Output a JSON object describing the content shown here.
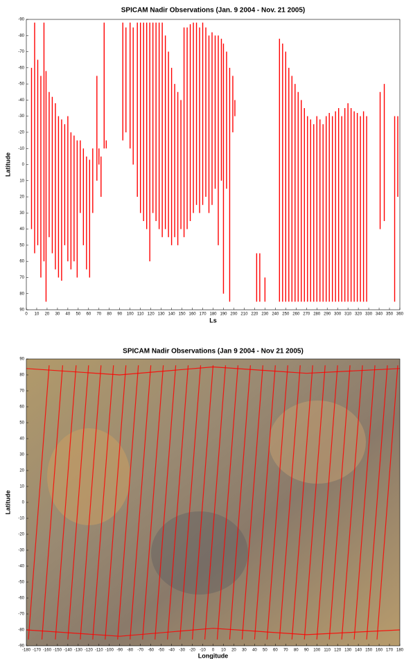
{
  "chart_data": [
    {
      "type": "range",
      "title": "SPICAM Nadir Observations (Jan. 9 2004 - Nov. 21 2005)",
      "xlabel": "Ls",
      "ylabel": "Latitude",
      "color": "#ff0000",
      "y_reversed": true,
      "xlim": [
        0,
        360
      ],
      "ylim": [
        -90,
        90
      ],
      "xticks": [
        0,
        10,
        20,
        30,
        40,
        50,
        60,
        70,
        80,
        90,
        100,
        110,
        120,
        130,
        140,
        150,
        160,
        170,
        180,
        190,
        200,
        210,
        220,
        230,
        240,
        250,
        260,
        270,
        280,
        290,
        300,
        310,
        320,
        330,
        340,
        350,
        360
      ],
      "yticks": [
        -90,
        -80,
        -70,
        -60,
        -50,
        -40,
        -30,
        -20,
        -10,
        0,
        10,
        20,
        30,
        40,
        50,
        60,
        70,
        80,
        90
      ],
      "x": [
        5,
        8,
        11,
        14,
        17,
        19,
        22,
        25,
        28,
        31,
        34,
        37,
        40,
        43,
        46,
        49,
        52,
        55,
        58,
        61,
        64,
        68,
        70,
        72,
        75,
        77,
        93,
        96,
        100,
        103,
        107,
        110,
        113,
        116,
        119,
        122,
        125,
        128,
        131,
        134,
        137,
        140,
        143,
        146,
        149,
        152,
        155,
        158,
        161,
        164,
        167,
        170,
        173,
        176,
        179,
        182,
        185,
        188,
        190,
        193,
        196,
        199,
        201,
        222,
        225,
        230,
        244,
        247,
        250,
        253,
        256,
        259,
        262,
        265,
        268,
        271,
        274,
        277,
        280,
        283,
        286,
        289,
        292,
        295,
        298,
        301,
        304,
        307,
        310,
        313,
        316,
        319,
        322,
        325,
        328,
        341,
        345,
        355,
        358
      ],
      "low": [
        -60,
        -88,
        -65,
        -55,
        -88,
        -58,
        -45,
        -42,
        -38,
        -30,
        -28,
        -25,
        -30,
        -20,
        -18,
        -15,
        -15,
        -10,
        -5,
        -3,
        -10,
        -55,
        -10,
        -5,
        -88,
        -15,
        -88,
        -85,
        -88,
        -85,
        -88,
        -88,
        -88,
        -88,
        -88,
        -88,
        -88,
        -88,
        -88,
        -80,
        -70,
        -60,
        -50,
        -45,
        -40,
        -85,
        -85,
        -87,
        -88,
        -88,
        -85,
        -88,
        -85,
        -80,
        -82,
        -80,
        -80,
        -78,
        -75,
        -70,
        -60,
        -55,
        -40,
        55,
        55,
        70,
        -78,
        -75,
        -70,
        -60,
        -55,
        -50,
        -45,
        -40,
        -35,
        -30,
        -28,
        -25,
        -30,
        -28,
        -25,
        -30,
        -32,
        -30,
        -33,
        -35,
        -30,
        -35,
        -38,
        -35,
        -33,
        -32,
        -30,
        -33,
        -30,
        -45,
        -50,
        -30,
        -30
      ],
      "high": [
        40,
        55,
        50,
        70,
        60,
        85,
        45,
        55,
        65,
        70,
        72,
        50,
        60,
        65,
        60,
        70,
        30,
        50,
        65,
        70,
        30,
        10,
        0,
        20,
        -10,
        -10,
        -15,
        -20,
        -10,
        0,
        20,
        30,
        35,
        40,
        60,
        30,
        35,
        40,
        45,
        40,
        45,
        50,
        45,
        50,
        40,
        45,
        40,
        35,
        30,
        25,
        30,
        25,
        20,
        30,
        25,
        15,
        50,
        10,
        80,
        15,
        85,
        -20,
        -30,
        85,
        85,
        85,
        85,
        85,
        85,
        85,
        85,
        85,
        85,
        85,
        85,
        85,
        85,
        85,
        85,
        85,
        85,
        85,
        85,
        85,
        85,
        85,
        85,
        85,
        85,
        85,
        85,
        85,
        85,
        85,
        85,
        40,
        35,
        85,
        20
      ]
    },
    {
      "type": "tracks",
      "title": "SPICAM Nadir Observations (Jan 9 2004 - Nov 21 2005)",
      "xlabel": "Longitude",
      "ylabel": "Latitude",
      "color": "#ff0000",
      "xlim": [
        -180,
        180
      ],
      "ylim": [
        -90,
        90
      ],
      "xticks": [
        -180,
        -170,
        -160,
        -150,
        -140,
        -130,
        -120,
        -110,
        -100,
        -90,
        -80,
        -70,
        -60,
        -50,
        -40,
        -30,
        -20,
        -10,
        0,
        10,
        20,
        30,
        40,
        50,
        60,
        70,
        80,
        90,
        100,
        110,
        120,
        130,
        140,
        150,
        160,
        170,
        180
      ],
      "yticks": [
        -90,
        -80,
        -70,
        -60,
        -50,
        -40,
        -30,
        -20,
        -10,
        0,
        10,
        20,
        30,
        40,
        50,
        60,
        70,
        80,
        90
      ],
      "tracks": [
        {
          "x": [
            -178,
            -168,
            -158
          ],
          "y": [
            -86,
            0,
            86
          ]
        },
        {
          "x": [
            -165,
            -155,
            -145
          ],
          "y": [
            -86,
            0,
            86
          ]
        },
        {
          "x": [
            -152,
            -142,
            -132
          ],
          "y": [
            -86,
            0,
            86
          ]
        },
        {
          "x": [
            -140,
            -130,
            -120
          ],
          "y": [
            -86,
            0,
            86
          ]
        },
        {
          "x": [
            -128,
            -118,
            -108
          ],
          "y": [
            -86,
            0,
            86
          ]
        },
        {
          "x": [
            -116,
            -106,
            -96
          ],
          "y": [
            -86,
            0,
            86
          ]
        },
        {
          "x": [
            -104,
            -94,
            -84
          ],
          "y": [
            -86,
            0,
            86
          ]
        },
        {
          "x": [
            -92,
            -82,
            -72
          ],
          "y": [
            -86,
            0,
            86
          ]
        },
        {
          "x": [
            -80,
            -70,
            -60
          ],
          "y": [
            -86,
            0,
            86
          ]
        },
        {
          "x": [
            -68,
            -58,
            -48
          ],
          "y": [
            -86,
            0,
            86
          ]
        },
        {
          "x": [
            -56,
            -46,
            -36
          ],
          "y": [
            -86,
            0,
            86
          ]
        },
        {
          "x": [
            -44,
            -34,
            -24
          ],
          "y": [
            -86,
            0,
            86
          ]
        },
        {
          "x": [
            -32,
            -22,
            -12
          ],
          "y": [
            -86,
            0,
            86
          ]
        },
        {
          "x": [
            -20,
            -10,
            0
          ],
          "y": [
            -86,
            0,
            86
          ]
        },
        {
          "x": [
            -8,
            2,
            12
          ],
          "y": [
            -86,
            0,
            86
          ]
        },
        {
          "x": [
            4,
            14,
            24
          ],
          "y": [
            -86,
            0,
            86
          ]
        },
        {
          "x": [
            16,
            26,
            36
          ],
          "y": [
            -86,
            0,
            86
          ]
        },
        {
          "x": [
            28,
            38,
            48
          ],
          "y": [
            -86,
            0,
            86
          ]
        },
        {
          "x": [
            40,
            50,
            60
          ],
          "y": [
            -86,
            0,
            86
          ]
        },
        {
          "x": [
            52,
            62,
            72
          ],
          "y": [
            -86,
            0,
            86
          ]
        },
        {
          "x": [
            64,
            74,
            84
          ],
          "y": [
            -86,
            0,
            86
          ]
        },
        {
          "x": [
            76,
            86,
            96
          ],
          "y": [
            -86,
            0,
            86
          ]
        },
        {
          "x": [
            88,
            98,
            108
          ],
          "y": [
            -86,
            0,
            86
          ]
        },
        {
          "x": [
            100,
            110,
            120
          ],
          "y": [
            -86,
            0,
            86
          ]
        },
        {
          "x": [
            112,
            122,
            132
          ],
          "y": [
            -86,
            0,
            86
          ]
        },
        {
          "x": [
            124,
            134,
            144
          ],
          "y": [
            -86,
            0,
            86
          ]
        },
        {
          "x": [
            136,
            146,
            156
          ],
          "y": [
            -86,
            0,
            86
          ]
        },
        {
          "x": [
            148,
            158,
            168
          ],
          "y": [
            -86,
            0,
            86
          ]
        },
        {
          "x": [
            158,
            168,
            178
          ],
          "y": [
            -86,
            0,
            86
          ]
        },
        {
          "x": [
            -180,
            -90,
            0,
            90,
            180
          ],
          "y": [
            -80,
            -84,
            -79,
            -83,
            -80
          ]
        },
        {
          "x": [
            -180,
            -90,
            0,
            90,
            180
          ],
          "y": [
            84,
            80,
            85,
            81,
            84
          ]
        }
      ]
    }
  ]
}
